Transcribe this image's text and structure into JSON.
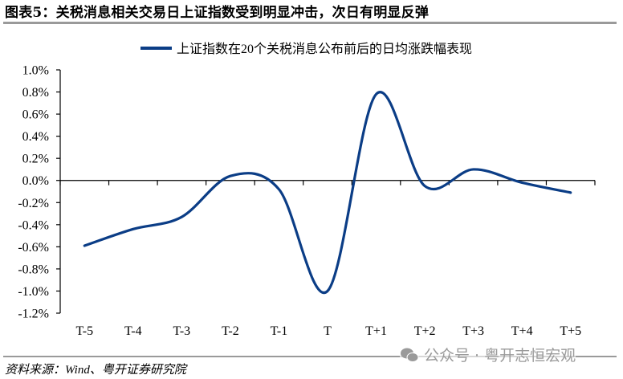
{
  "header": {
    "title": "图表5：关税消息相关交易日上证指数受到明显冲击，次日有明显反弹"
  },
  "footer": {
    "source": "资料来源：Wind、粤开证券研究院",
    "watermark": "公众号 · 粤开志恒宏观",
    "watermark_icon": "wechat-icon"
  },
  "colors": {
    "series": "#0b3d86",
    "axis": "#000000",
    "rule": "#9a9a9a"
  },
  "chart_data": {
    "type": "line",
    "title": "",
    "xlabel": "",
    "ylabel": "",
    "categories": [
      "T-5",
      "T-4",
      "T-3",
      "T-2",
      "T-1",
      "T",
      "T+1",
      "T+2",
      "T+3",
      "T+4",
      "T+5"
    ],
    "series": [
      {
        "name": "上证指数在20个关税消息公布前后的日均涨跌幅表现",
        "values": [
          -0.59,
          -0.44,
          -0.33,
          0.04,
          -0.08,
          -1.0,
          0.78,
          -0.05,
          0.1,
          -0.02,
          -0.11
        ],
        "unit": "%",
        "smooth": true,
        "color": "#0b3d86"
      }
    ],
    "ylim": [
      -1.2,
      1.0
    ],
    "yticks": [
      "1.0%",
      "0.8%",
      "0.6%",
      "0.4%",
      "0.2%",
      "0.0%",
      "-0.2%",
      "-0.4%",
      "-0.6%",
      "-0.8%",
      "-1.0%",
      "-1.2%"
    ],
    "grid": false,
    "legend": {
      "position": "top",
      "entries": [
        "上证指数在20个关税消息公布前后的日均涨跌幅表现"
      ]
    }
  }
}
